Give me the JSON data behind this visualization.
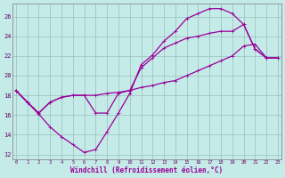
{
  "xlabel": "Windchill (Refroidissement éolien,°C)",
  "background_color": "#c5ebe8",
  "grid_color": "#99bfbc",
  "line_color": "#990099",
  "xlim": [
    -0.3,
    23.3
  ],
  "ylim": [
    11.5,
    27.3
  ],
  "yticks": [
    12,
    14,
    16,
    18,
    20,
    22,
    24,
    26
  ],
  "xticks": [
    0,
    1,
    2,
    3,
    4,
    5,
    6,
    7,
    8,
    9,
    10,
    11,
    12,
    13,
    14,
    15,
    16,
    17,
    18,
    19,
    20,
    21,
    22,
    23
  ],
  "curve_top_x": [
    0,
    1,
    2,
    3,
    4,
    5,
    6,
    7,
    8,
    9,
    10,
    11,
    12,
    13,
    14,
    15,
    16,
    17,
    18,
    19,
    20,
    21,
    22,
    23
  ],
  "curve_top_y": [
    18.5,
    17.3,
    16.1,
    14.8,
    13.8,
    13.0,
    12.2,
    12.5,
    14.3,
    16.2,
    18.2,
    21.1,
    22.1,
    23.5,
    24.5,
    25.8,
    26.3,
    26.8,
    26.8,
    26.3,
    25.2,
    22.7,
    21.8,
    21.8
  ],
  "curve_mid_x": [
    0,
    1,
    2,
    3,
    4,
    5,
    6,
    7,
    8,
    9,
    10,
    11,
    12,
    13,
    14,
    15,
    16,
    17,
    18,
    19,
    20,
    21,
    22,
    23
  ],
  "curve_mid_y": [
    18.5,
    17.3,
    16.2,
    17.3,
    17.8,
    18.0,
    18.0,
    16.2,
    16.2,
    18.2,
    18.5,
    20.8,
    21.8,
    22.8,
    23.3,
    23.8,
    24.0,
    24.3,
    24.5,
    24.5,
    25.2,
    22.7,
    21.8,
    21.8
  ],
  "curve_bot_x": [
    0,
    1,
    2,
    3,
    4,
    5,
    6,
    7,
    8,
    9,
    10,
    11,
    12,
    13,
    14,
    15,
    16,
    17,
    18,
    19,
    20,
    21,
    22,
    23
  ],
  "curve_bot_y": [
    18.5,
    17.3,
    16.2,
    17.3,
    17.8,
    18.0,
    18.0,
    18.0,
    18.2,
    18.3,
    18.5,
    18.8,
    19.0,
    19.3,
    19.5,
    20.0,
    20.5,
    21.0,
    21.5,
    22.0,
    23.0,
    23.2,
    21.8,
    21.8
  ]
}
